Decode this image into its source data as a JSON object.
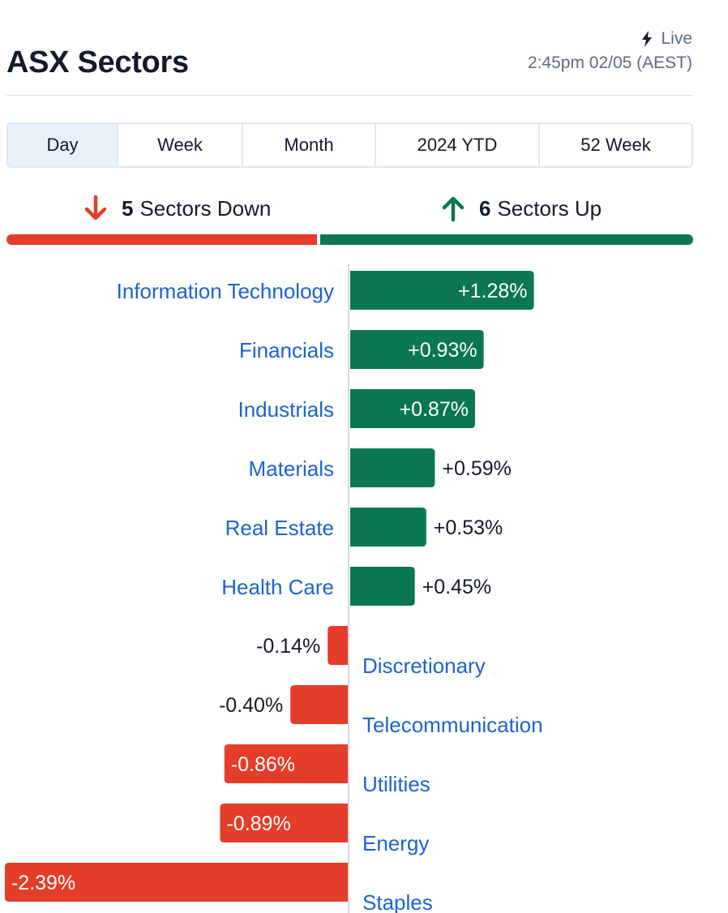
{
  "header": {
    "title": "ASX Sectors",
    "live_label": "Live",
    "timestamp": "2:45pm 02/05 (AEST)"
  },
  "tabs": [
    {
      "label": "Day",
      "active": true
    },
    {
      "label": "Week",
      "active": false
    },
    {
      "label": "Month",
      "active": false
    },
    {
      "label": "2024 YTD",
      "active": false
    },
    {
      "label": "52 Week",
      "active": false
    }
  ],
  "summary": {
    "down_count": "5",
    "down_text": "Sectors Down",
    "up_count": "6",
    "up_text": "Sectors Up"
  },
  "colors": {
    "up": "#0a7752",
    "down": "#e43d2a",
    "link": "#1d62d0",
    "text": "#121a2c",
    "muted": "#5c6b7e",
    "tab_active_bg": "#e8f0f9"
  },
  "chart_data": {
    "type": "bar",
    "orientation": "horizontal-diverging",
    "categories": [
      "Information Technology",
      "Financials",
      "Industrials",
      "Materials",
      "Real Estate",
      "Health Care",
      "Discretionary",
      "Telecommunication",
      "Utilities",
      "Energy",
      "Staples"
    ],
    "values": [
      1.28,
      0.93,
      0.87,
      0.59,
      0.53,
      0.45,
      -0.14,
      -0.4,
      -0.86,
      -0.89,
      -2.39
    ],
    "value_labels": [
      "+1.28%",
      "+0.93%",
      "+0.87%",
      "+0.59%",
      "+0.53%",
      "+0.45%",
      "-0.14%",
      "-0.40%",
      "-0.86%",
      "-0.89%",
      "-2.39%"
    ],
    "unit": "%"
  }
}
